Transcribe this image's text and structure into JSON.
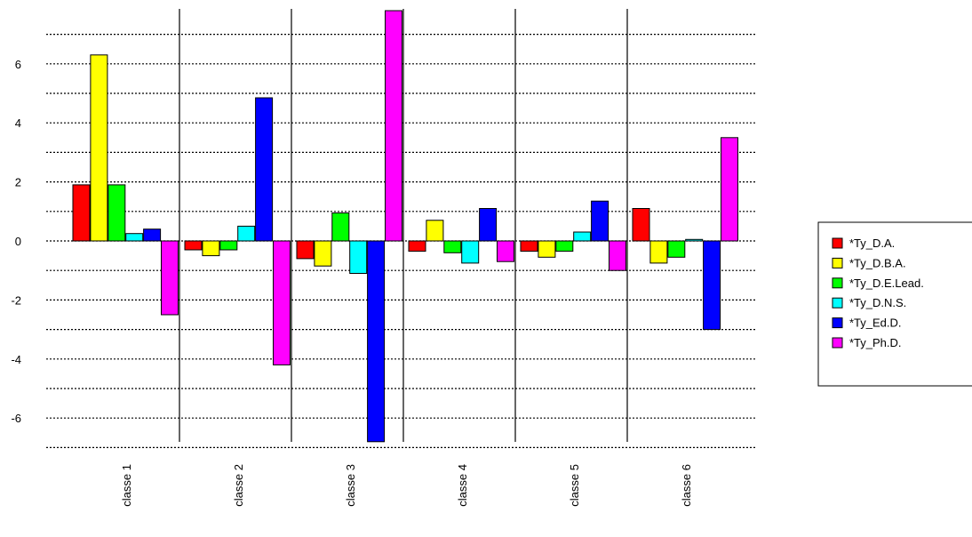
{
  "chart_data": {
    "type": "bar",
    "categories": [
      "classe 1",
      "classe 2",
      "classe 3",
      "classe 4",
      "classe 5",
      "classe 6"
    ],
    "series": [
      {
        "name": "*Ty_D.A.",
        "color": "#ff0000",
        "values": [
          1.9,
          -0.3,
          -0.6,
          -0.35,
          -0.35,
          1.1
        ]
      },
      {
        "name": "*Ty_D.B.A.",
        "color": "#ffff00",
        "values": [
          6.3,
          -0.5,
          -0.85,
          0.7,
          -0.55,
          -0.75
        ]
      },
      {
        "name": "*Ty_D.E.Lead.",
        "color": "#00ff00",
        "values": [
          1.9,
          -0.3,
          0.95,
          -0.4,
          -0.35,
          -0.55
        ]
      },
      {
        "name": "*Ty_D.N.S.",
        "color": "#00ffff",
        "values": [
          0.25,
          0.5,
          -1.1,
          -0.75,
          0.3,
          0.05
        ]
      },
      {
        "name": "*Ty_Ed.D.",
        "color": "#0000ff",
        "values": [
          0.4,
          4.85,
          -6.8,
          1.1,
          1.35,
          -3.0
        ]
      },
      {
        "name": "*Ty_Ph.D.",
        "color": "#ff00ff",
        "values": [
          -2.5,
          -4.2,
          7.8,
          -0.7,
          -1.0,
          3.5
        ]
      }
    ],
    "y_ticks": [
      -6,
      -4,
      -2,
      0,
      2,
      4,
      6
    ],
    "ylim": [
      -6.8,
      7.8
    ],
    "gridlines_y": [
      -7,
      -6,
      -5,
      -4,
      -3,
      -2,
      -1,
      0,
      1,
      2,
      3,
      4,
      5,
      6,
      7
    ],
    "grid": "horizontal dotted",
    "legend_position": "right",
    "title": "",
    "xlabel": "",
    "ylabel": ""
  }
}
